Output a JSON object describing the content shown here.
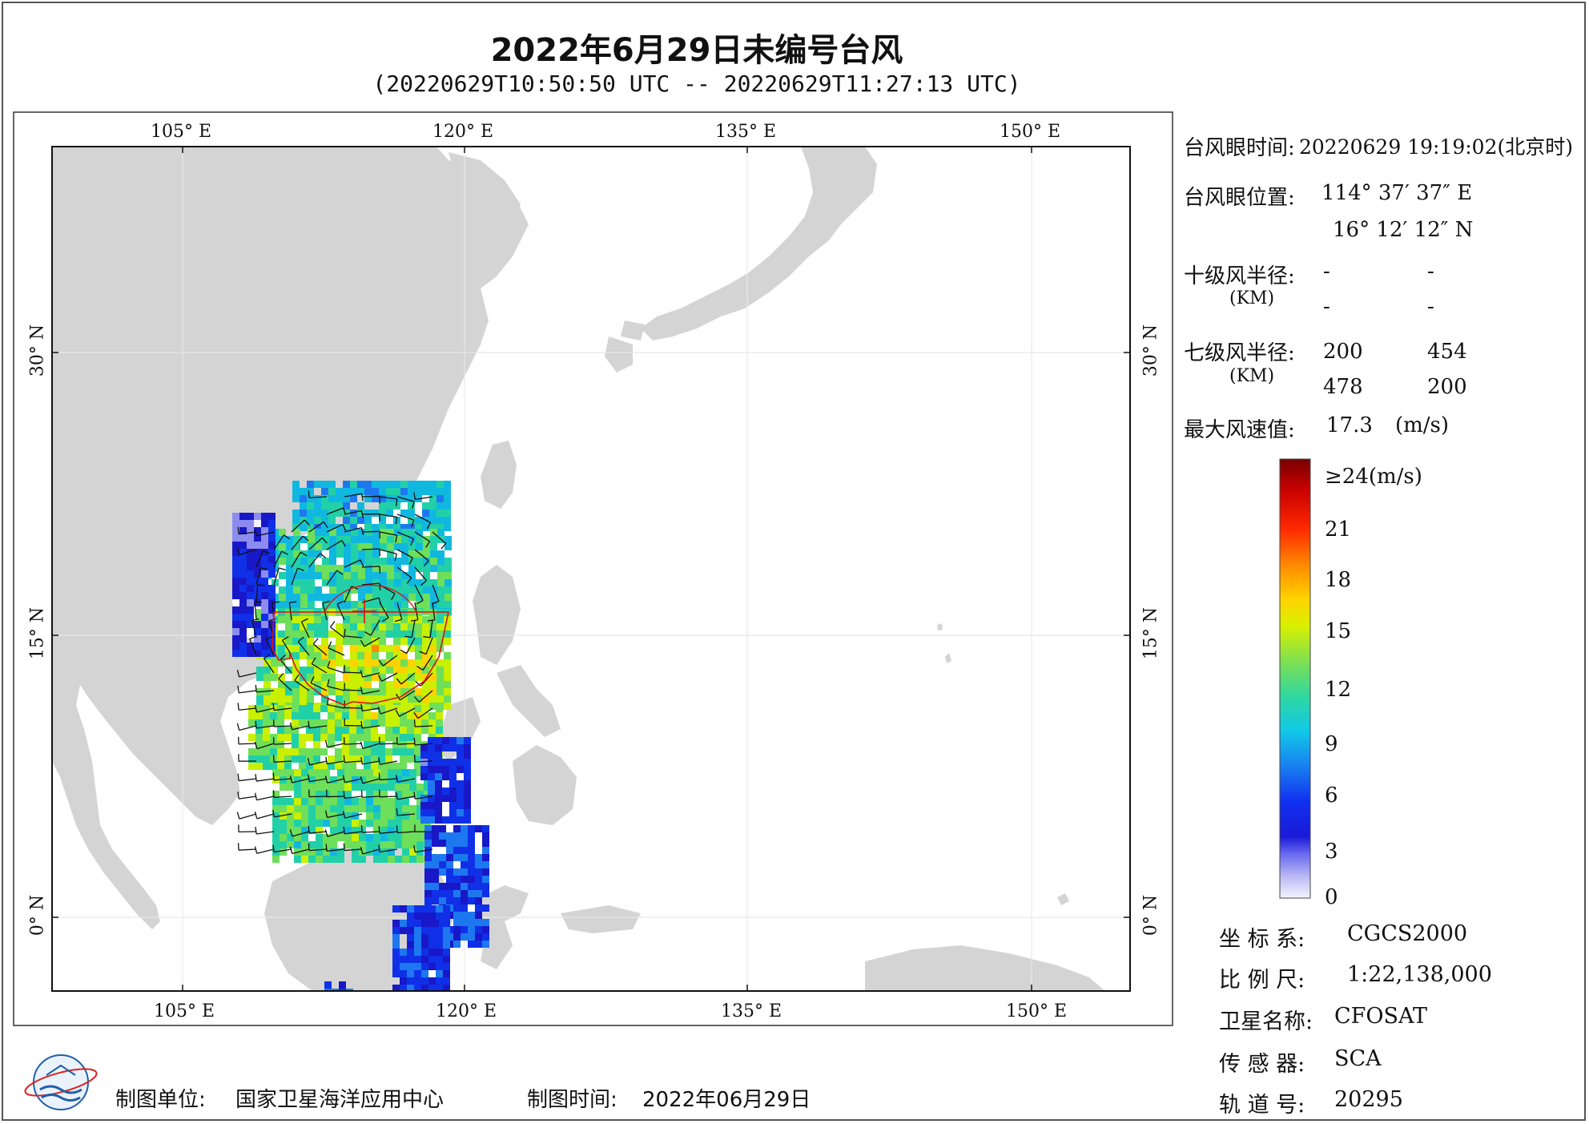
{
  "title": "2022年6月29日未编号台风",
  "subtitle": "(20220629T10:50:50 UTC -- 20220629T11:27:13 UTC)",
  "map": {
    "top_lon_labels": [
      "105° E",
      "120° E",
      "135° E",
      "150° E"
    ],
    "bottom_lon_labels": [
      "105° E",
      "120° E",
      "135° E",
      "150° E"
    ],
    "lat_labels": [
      "30° N",
      "15° N",
      "0° N"
    ],
    "eye_marker": "typhoon-eye-cross",
    "colors": {
      "land": "#d4d4d4",
      "ocean": "#ffffff",
      "boundary": "#dd1111",
      "barb": "#111111"
    }
  },
  "info": {
    "eye_time_label": "台风眼时间:",
    "eye_time_value": "20220629 19:19:02(北京时)",
    "eye_pos_label": "台风眼位置:",
    "eye_lon": "114° 37′ 37″ E",
    "eye_lat": "16° 12′ 12″ N",
    "r10_label": "十级风半径:",
    "r10_unit": "(KM)",
    "r10_values": [
      "-",
      "-",
      "-",
      "-"
    ],
    "r7_label": "七级风半径:",
    "r7_unit": "(KM)",
    "r7_values": [
      "200",
      "454",
      "478",
      "200"
    ],
    "max_wind_label": "最大风速值:",
    "max_wind_value": "17.3",
    "max_wind_unit": "(m/s)"
  },
  "colorbar": {
    "labels": [
      "≥24(m/s)",
      "21",
      "18",
      "15",
      "12",
      "9",
      "6",
      "3",
      "0"
    ],
    "stops": [
      "#7a0000",
      "#cc0000",
      "#ff3300",
      "#ff8a00",
      "#ffd200",
      "#c8f000",
      "#6ddf5a",
      "#22d0a8",
      "#10b8e0",
      "#1d78f0",
      "#1030e8",
      "#1818c8",
      "#8c8cf0",
      "#f2f2ff"
    ]
  },
  "meta": {
    "coord_label": "坐 标 系:",
    "coord_value": "CGCS2000",
    "scale_label": "比 例 尺:",
    "scale_value": "1:22,138,000",
    "sat_label": "卫星名称:",
    "sat_value": "CFOSAT",
    "sensor_label": "传 感 器:",
    "sensor_value": "SCA",
    "orbit_label": "轨 道 号:",
    "orbit_value": "20295"
  },
  "footer": {
    "unit_label": "制图单位:",
    "unit_value": "国家卫星海洋应用中心",
    "time_label": "制图时间:",
    "time_value": "2022年06月29日"
  }
}
